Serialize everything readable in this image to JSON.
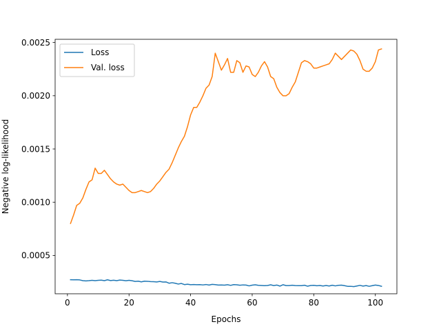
{
  "chart_data": {
    "type": "line",
    "title": "",
    "xlabel": "Epochs",
    "ylabel": "Negative log-likelihood",
    "xlim": [
      -4,
      107
    ],
    "ylim": [
      0.00014,
      0.00253
    ],
    "xticks": [
      0,
      20,
      40,
      60,
      80,
      100
    ],
    "yticks": [
      0.0005,
      0.001,
      0.0015,
      0.002,
      0.0025
    ],
    "ytick_labels": [
      "0.0005",
      "0.0010",
      "0.0015",
      "0.0020",
      "0.0025"
    ],
    "grid": false,
    "legend": "upper-left",
    "series": [
      {
        "name": "Loss",
        "color": "#1f77b4",
        "x": [
          1,
          2,
          3,
          4,
          5,
          6,
          7,
          8,
          9,
          10,
          11,
          12,
          13,
          14,
          15,
          16,
          17,
          18,
          19,
          20,
          21,
          22,
          23,
          24,
          25,
          26,
          27,
          28,
          29,
          30,
          31,
          32,
          33,
          34,
          35,
          36,
          37,
          38,
          39,
          40,
          41,
          42,
          43,
          44,
          45,
          46,
          47,
          48,
          49,
          50,
          51,
          52,
          53,
          54,
          55,
          56,
          57,
          58,
          59,
          60,
          61,
          62,
          63,
          64,
          65,
          66,
          67,
          68,
          69,
          70,
          71,
          72,
          73,
          74,
          75,
          76,
          77,
          78,
          79,
          80,
          81,
          82,
          83,
          84,
          85,
          86,
          87,
          88,
          89,
          90,
          91,
          92,
          93,
          94,
          95,
          96,
          97,
          98,
          99,
          100,
          101,
          102
        ],
        "values": [
          0.000272,
          0.000271,
          0.000272,
          0.00027,
          0.000263,
          0.000261,
          0.000263,
          0.000266,
          0.000263,
          0.000266,
          0.000268,
          0.000263,
          0.000271,
          0.000264,
          0.000267,
          0.000263,
          0.000269,
          0.000266,
          0.000262,
          0.000266,
          0.000262,
          0.000256,
          0.000258,
          0.000252,
          0.000258,
          0.000257,
          0.000254,
          0.000253,
          0.000251,
          0.000256,
          0.00025,
          0.000251,
          0.000239,
          0.000244,
          0.000239,
          0.000231,
          0.000237,
          0.000226,
          0.00023,
          0.000225,
          0.000227,
          0.000225,
          0.000226,
          0.000223,
          0.000227,
          0.000222,
          0.000228,
          0.000226,
          0.000222,
          0.000223,
          0.000221,
          0.000225,
          0.000219,
          0.000226,
          0.000224,
          0.00022,
          0.000223,
          0.000222,
          0.000214,
          0.000221,
          0.000224,
          0.000219,
          0.000218,
          0.000216,
          0.000218,
          0.000224,
          0.000217,
          0.000222,
          0.000212,
          0.000225,
          0.000217,
          0.000217,
          0.00022,
          0.000217,
          0.000216,
          0.000216,
          0.00022,
          0.000211,
          0.000218,
          0.000219,
          0.000215,
          0.000218,
          0.000213,
          0.000218,
          0.000213,
          0.00022,
          0.000214,
          0.000219,
          0.000221,
          0.000216,
          0.00021,
          0.00021,
          0.000207,
          0.000213,
          0.000219,
          0.000212,
          0.000217,
          0.00021,
          0.000216,
          0.000222,
          0.000218,
          0.00021
        ]
      },
      {
        "name": "Val. loss",
        "color": "#ff7f0e",
        "x": [
          1,
          2,
          3,
          4,
          5,
          6,
          7,
          8,
          9,
          10,
          11,
          12,
          13,
          14,
          15,
          16,
          17,
          18,
          19,
          20,
          21,
          22,
          23,
          24,
          25,
          26,
          27,
          28,
          29,
          30,
          31,
          32,
          33,
          34,
          35,
          36,
          37,
          38,
          39,
          40,
          41,
          42,
          43,
          44,
          45,
          46,
          47,
          48,
          49,
          50,
          51,
          52,
          53,
          54,
          55,
          56,
          57,
          58,
          59,
          60,
          61,
          62,
          63,
          64,
          65,
          66,
          67,
          68,
          69,
          70,
          71,
          72,
          73,
          74,
          75,
          76,
          77,
          78,
          79,
          80,
          81,
          82,
          83,
          84,
          85,
          86,
          87,
          88,
          89,
          90,
          91,
          92,
          93,
          94,
          95,
          96,
          97,
          98,
          99,
          100,
          101,
          102
        ],
        "values": [
          0.0008,
          0.00088,
          0.00097,
          0.00099,
          0.00104,
          0.00112,
          0.00119,
          0.00121,
          0.00132,
          0.00127,
          0.00127,
          0.0013,
          0.00126,
          0.00122,
          0.00119,
          0.00117,
          0.00116,
          0.00117,
          0.00114,
          0.00111,
          0.00109,
          0.00109,
          0.0011,
          0.00111,
          0.0011,
          0.00109,
          0.0011,
          0.00113,
          0.00117,
          0.0012,
          0.00124,
          0.00128,
          0.00131,
          0.00137,
          0.00144,
          0.00151,
          0.00157,
          0.00162,
          0.00171,
          0.00182,
          0.00189,
          0.00189,
          0.00194,
          0.002,
          0.00207,
          0.0021,
          0.00218,
          0.0024,
          0.00232,
          0.00224,
          0.00229,
          0.00235,
          0.00222,
          0.00222,
          0.00233,
          0.00231,
          0.00222,
          0.00228,
          0.00227,
          0.0022,
          0.00218,
          0.00222,
          0.00228,
          0.00232,
          0.00227,
          0.00218,
          0.00216,
          0.00208,
          0.00203,
          0.002,
          0.002,
          0.00202,
          0.00208,
          0.00213,
          0.00222,
          0.00231,
          0.00233,
          0.00232,
          0.0023,
          0.00226,
          0.00226,
          0.00227,
          0.00228,
          0.00229,
          0.0023,
          0.00234,
          0.0024,
          0.00237,
          0.00234,
          0.00237,
          0.0024,
          0.00243,
          0.00242,
          0.00239,
          0.00233,
          0.00225,
          0.00223,
          0.00223,
          0.00226,
          0.00232,
          0.00243,
          0.00244
        ]
      }
    ]
  }
}
